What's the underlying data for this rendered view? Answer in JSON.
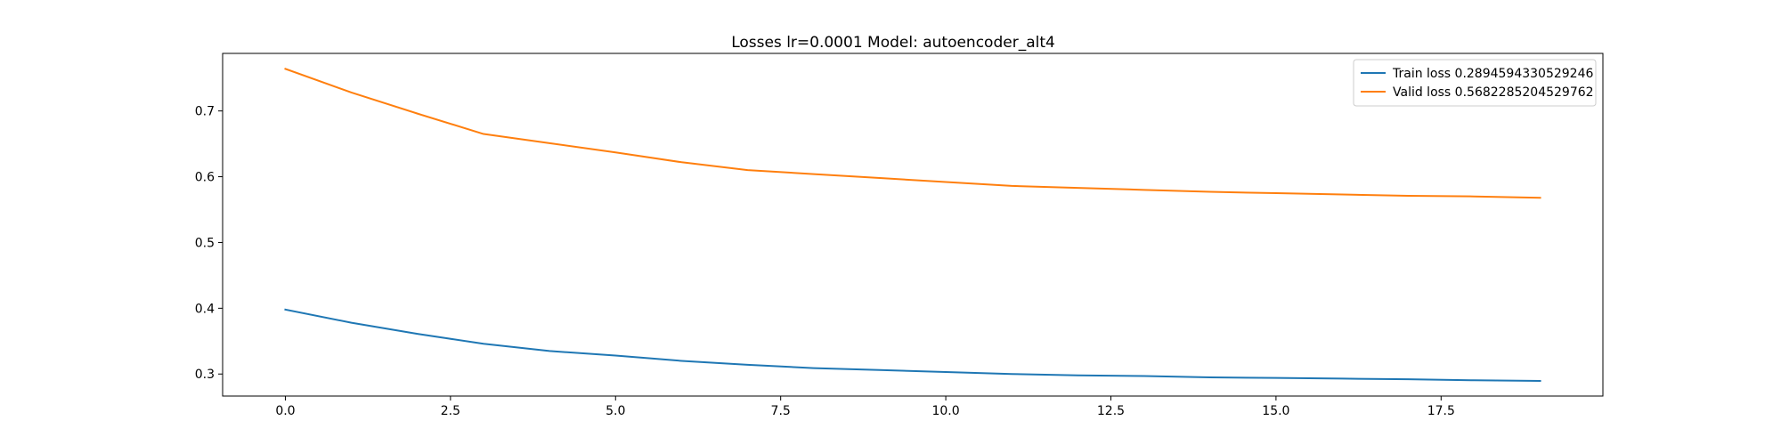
{
  "chart_data": {
    "type": "line",
    "title": "Losses lr=0.0001 Model: autoencoder_alt4",
    "xlabel": "",
    "ylabel": "",
    "xlim": [
      -0.95,
      19.95
    ],
    "ylim": [
      0.2665,
      0.7875
    ],
    "xticks": [
      0.0,
      2.5,
      5.0,
      7.5,
      10.0,
      12.5,
      15.0,
      17.5
    ],
    "xtick_labels": [
      "0.0",
      "2.5",
      "5.0",
      "7.5",
      "10.0",
      "12.5",
      "15.0",
      "17.5"
    ],
    "yticks": [
      0.3,
      0.4,
      0.5,
      0.6,
      0.7
    ],
    "ytick_labels": [
      "0.3",
      "0.4",
      "0.5",
      "0.6",
      "0.7"
    ],
    "grid": false,
    "legend_position": "top-right",
    "x": [
      0,
      1,
      2,
      3,
      4,
      5,
      6,
      7,
      8,
      9,
      10,
      11,
      12,
      13,
      14,
      15,
      16,
      17,
      18,
      19
    ],
    "series": [
      {
        "name": "Train loss 0.2894594330529246",
        "color": "#1f77b4",
        "values": [
          0.398,
          0.378,
          0.361,
          0.346,
          0.335,
          0.328,
          0.32,
          0.314,
          0.309,
          0.306,
          0.303,
          0.3,
          0.298,
          0.297,
          0.295,
          0.294,
          0.293,
          0.292,
          0.2905,
          0.2895
        ]
      },
      {
        "name": "Valid loss 0.5682285204529762",
        "color": "#ff7f0e",
        "values": [
          0.764,
          0.728,
          0.696,
          0.665,
          0.651,
          0.637,
          0.622,
          0.61,
          0.604,
          0.598,
          0.592,
          0.586,
          0.583,
          0.58,
          0.577,
          0.575,
          0.573,
          0.571,
          0.57,
          0.568
        ]
      }
    ]
  }
}
